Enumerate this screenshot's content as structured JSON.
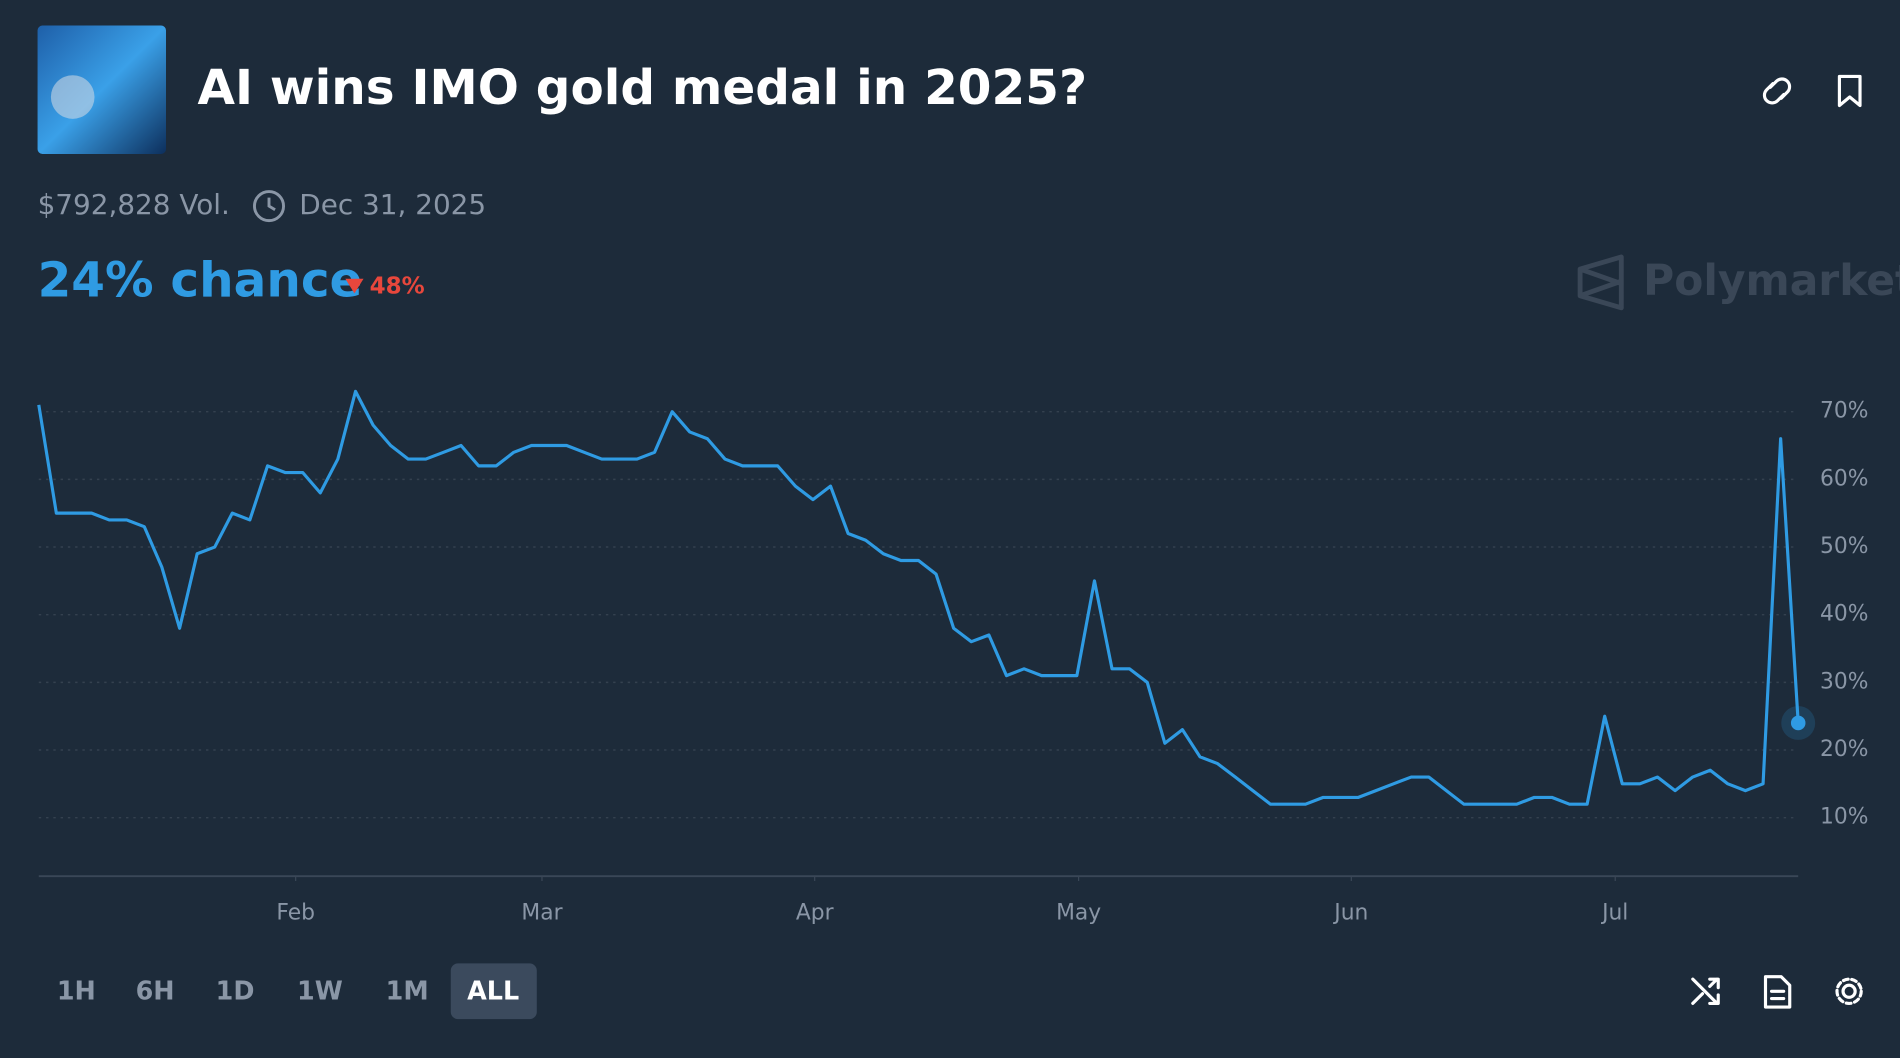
{
  "header": {
    "title": "AI wins IMO gold medal in 2025?",
    "volume": "$792,828 Vol.",
    "end_date": "Dec 31, 2025",
    "chance": "24% chance",
    "change": "48%",
    "brand": "Polymarket"
  },
  "time_buttons": [
    "1H",
    "6H",
    "1D",
    "1W",
    "1M",
    "ALL"
  ],
  "chart_data": {
    "type": "line",
    "color": "#2f9be3",
    "grid": true,
    "values": [
      71,
      55,
      55,
      55,
      54,
      54,
      53,
      47,
      38,
      49,
      50,
      55,
      54,
      62,
      61,
      61,
      58,
      63,
      73,
      68,
      65,
      63,
      63,
      64,
      65,
      62,
      62,
      64,
      65,
      65,
      65,
      64,
      63,
      63,
      63,
      64,
      70,
      67,
      66,
      63,
      62,
      62,
      62,
      59,
      57,
      59,
      52,
      51,
      49,
      48,
      48,
      46,
      38,
      36,
      37,
      31,
      32,
      31,
      31,
      31,
      45,
      32,
      32,
      30,
      21,
      23,
      19,
      18,
      16,
      14,
      12,
      12,
      12,
      13,
      13,
      13,
      14,
      15,
      16,
      16,
      14,
      12,
      12,
      12,
      12,
      13,
      13,
      12,
      12,
      25,
      15,
      15,
      16,
      14,
      16,
      17,
      15,
      14,
      15,
      66,
      24
    ],
    "xlim": [
      0,
      100
    ],
    "xticks": [
      {
        "value": 14.6,
        "label": "Feb"
      },
      {
        "value": 28.6,
        "label": "Mar"
      },
      {
        "value": 44.1,
        "label": "Apr"
      },
      {
        "value": 59.1,
        "label": "May"
      },
      {
        "value": 74.6,
        "label": "Jun"
      },
      {
        "value": 89.6,
        "label": "Jul"
      }
    ],
    "ylim": [
      1,
      78
    ],
    "yticks": [
      {
        "value": 10,
        "label": "10%"
      },
      {
        "value": 20,
        "label": "20%"
      },
      {
        "value": 30,
        "label": "30%"
      },
      {
        "value": 40,
        "label": "40%"
      },
      {
        "value": 50,
        "label": "50%"
      },
      {
        "value": 60,
        "label": "60%"
      },
      {
        "value": 70,
        "label": "70%"
      }
    ]
  }
}
